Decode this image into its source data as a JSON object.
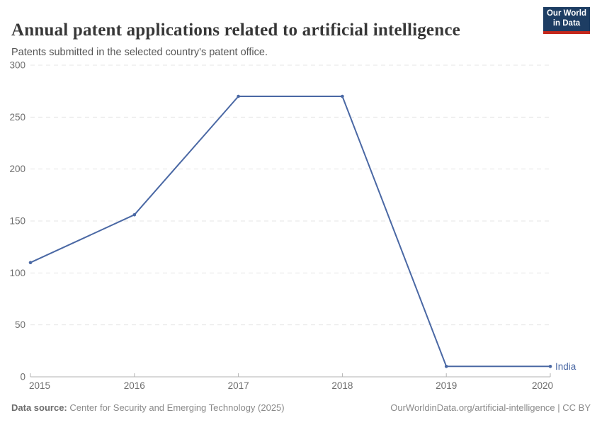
{
  "header": {
    "title": "Annual patent applications related to artificial intelligence",
    "subtitle": "Patents submitted in the selected country's patent office.",
    "logo": {
      "line1": "Our World",
      "line2": "in Data",
      "background_color": "#1d3d63",
      "accent_color": "#c5281c"
    }
  },
  "chart_data": {
    "type": "line",
    "title": "Annual patent applications related to artificial intelligence",
    "x": [
      2015,
      2016,
      2017,
      2018,
      2019,
      2020
    ],
    "series": [
      {
        "name": "India",
        "values": [
          110,
          156,
          270,
          270,
          10,
          10
        ],
        "color": "#4a68a4"
      }
    ],
    "xlabel": "",
    "ylabel": "",
    "ylim": [
      0,
      300
    ],
    "yticks": [
      0,
      50,
      100,
      150,
      200,
      250,
      300
    ],
    "xticks": [
      2015,
      2016,
      2017,
      2018,
      2019,
      2020
    ],
    "grid": "horizontal-dashed",
    "legend_position": "end-of-line",
    "marker": "dot"
  },
  "footer": {
    "datasource_label": "Data source:",
    "datasource_value": " Center for Security and Emerging Technology (2025)",
    "attribution": "OurWorldinData.org/artificial-intelligence | CC BY"
  }
}
